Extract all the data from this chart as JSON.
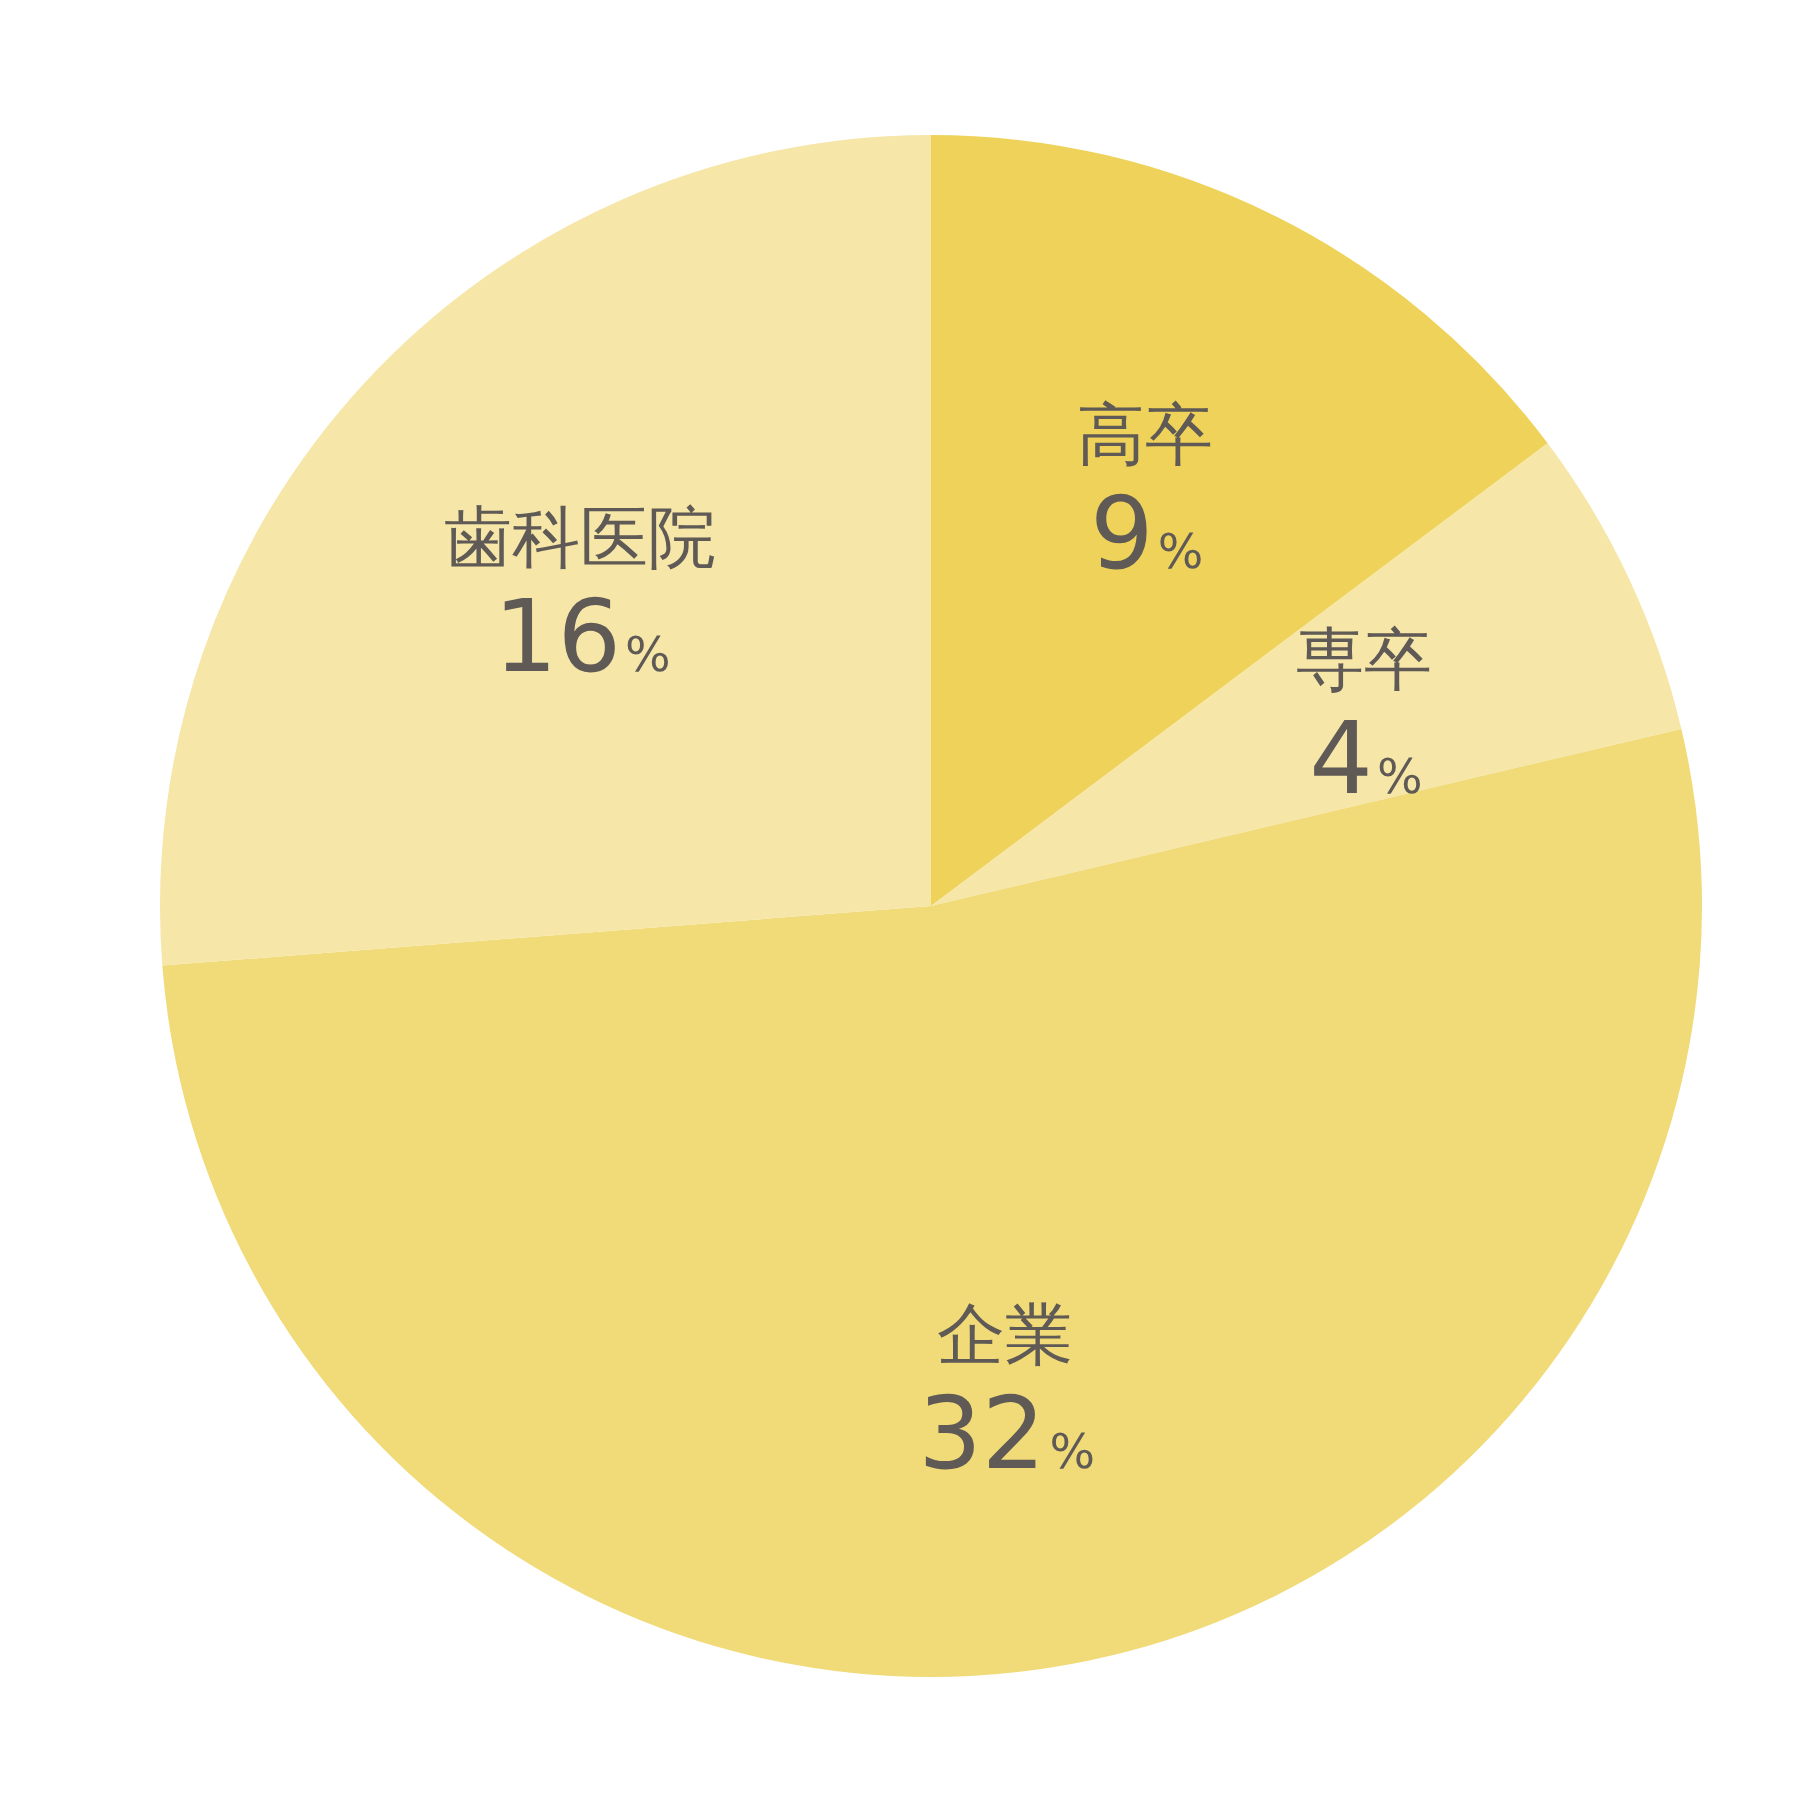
{
  "chart_data": {
    "type": "pie",
    "categories": [
      "高卒",
      "専卒",
      "企業",
      "歯科医院"
    ],
    "values": [
      9,
      4,
      32,
      16
    ],
    "value_labels": [
      "9%",
      "4%",
      "32%",
      "16%"
    ],
    "colors": [
      "#efd25a",
      "#f6e6a8",
      "#f1da78",
      "#f6e6a8"
    ]
  }
}
